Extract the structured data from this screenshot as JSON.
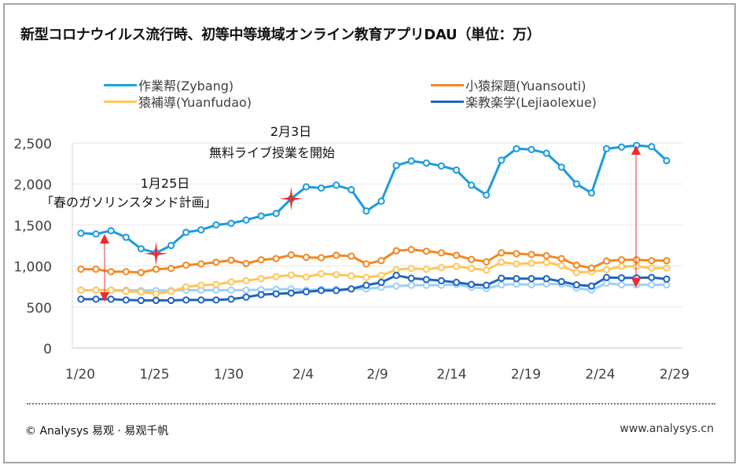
{
  "title": "新型コロナウイルス流行時、初等中等境域オンライン教育アプリDAU（単位：万）",
  "footer": {
    "left": "© Analysys 易观 · 易观千帆",
    "right": "www.analysys.cn"
  },
  "annotations": [
    {
      "date": "1月25日",
      "text": "「春のガソリンスタンド計画」"
    },
    {
      "date": "2月3日",
      "text": "無料ライブ授業を開始"
    }
  ],
  "chart_data": {
    "type": "line",
    "title": "新型コロナウイルス流行時、初等中等境域オンライン教育アプリDAU（単位：万）",
    "xlabel": "",
    "ylabel": "",
    "ylim": [
      0,
      2500
    ],
    "yticks": [
      "0",
      "500",
      "1,000",
      "1,500",
      "2,000",
      "2,500"
    ],
    "ytick_values": [
      0,
      500,
      1000,
      1500,
      2000,
      2500
    ],
    "xtick_labels": [
      "1/20",
      "1/25",
      "1/30",
      "2/4",
      "2/9",
      "2/14",
      "2/19",
      "2/24",
      "2/29"
    ],
    "x": [
      "1/20",
      "1/21",
      "1/22",
      "1/23",
      "1/24",
      "1/25",
      "1/26",
      "1/27",
      "1/28",
      "1/29",
      "1/30",
      "1/31",
      "2/1",
      "2/2",
      "2/3",
      "2/4",
      "2/5",
      "2/6",
      "2/7",
      "2/8",
      "2/9",
      "2/10",
      "2/11",
      "2/12",
      "2/13",
      "2/14",
      "2/15",
      "2/16",
      "2/17",
      "2/18",
      "2/19",
      "2/20",
      "2/21",
      "2/22",
      "2/23",
      "2/24",
      "2/25",
      "2/26",
      "2/27",
      "2/28"
    ],
    "grid": true,
    "legend_position": "top",
    "series": [
      {
        "name": "作業帮(Zybang)",
        "color": "#1a9be0",
        "values": [
          1400,
          1390,
          1430,
          1350,
          1210,
          1160,
          1250,
          1410,
          1440,
          1500,
          1520,
          1560,
          1610,
          1640,
          1820,
          1965,
          1950,
          1985,
          1930,
          1670,
          1790,
          2225,
          2280,
          2255,
          2220,
          2170,
          1985,
          1865,
          2290,
          2430,
          2420,
          2375,
          2205,
          2000,
          1890,
          2430,
          2450,
          2470,
          2455,
          2285
        ]
      },
      {
        "name": "小猿探題(Yuansouti)",
        "color": "#f5861f",
        "values": [
          960,
          960,
          930,
          930,
          920,
          960,
          970,
          1010,
          1025,
          1045,
          1070,
          1030,
          1075,
          1090,
          1135,
          1105,
          1100,
          1130,
          1120,
          1025,
          1065,
          1185,
          1200,
          1180,
          1160,
          1130,
          1080,
          1050,
          1160,
          1150,
          1140,
          1125,
          1090,
          1010,
          975,
          1060,
          1075,
          1075,
          1065,
          1065
        ]
      },
      {
        "name": "猿補導(Yuanfudao)",
        "color": "#ffc658",
        "values": [
          705,
          705,
          705,
          690,
          685,
          660,
          690,
          745,
          765,
          775,
          805,
          820,
          845,
          870,
          890,
          865,
          905,
          895,
          880,
          860,
          885,
          955,
          970,
          960,
          980,
          995,
          970,
          950,
          1045,
          1025,
          1035,
          1045,
          1005,
          920,
          930,
          955,
          995,
          995,
          975,
          975
        ]
      },
      {
        "name": "楽教楽学(Lejiaolexue)",
        "color": "#1f64c0",
        "values": [
          595,
          595,
          595,
          585,
          580,
          580,
          580,
          585,
          585,
          585,
          595,
          620,
          650,
          660,
          670,
          685,
          700,
          700,
          720,
          765,
          800,
          885,
          850,
          835,
          820,
          800,
          775,
          765,
          850,
          845,
          845,
          845,
          810,
          770,
          755,
          860,
          855,
          855,
          860,
          840
        ]
      },
      {
        "color": "#9ecff5",
        "values": [
          705,
          705,
          705,
          705,
          700,
          700,
          700,
          705,
          705,
          705,
          705,
          705,
          710,
          715,
          720,
          705,
          715,
          715,
          720,
          720,
          740,
          755,
          765,
          765,
          765,
          775,
          740,
          725,
          770,
          780,
          770,
          780,
          780,
          730,
          705,
          790,
          770,
          770,
          770,
          770
        ]
      }
    ]
  }
}
